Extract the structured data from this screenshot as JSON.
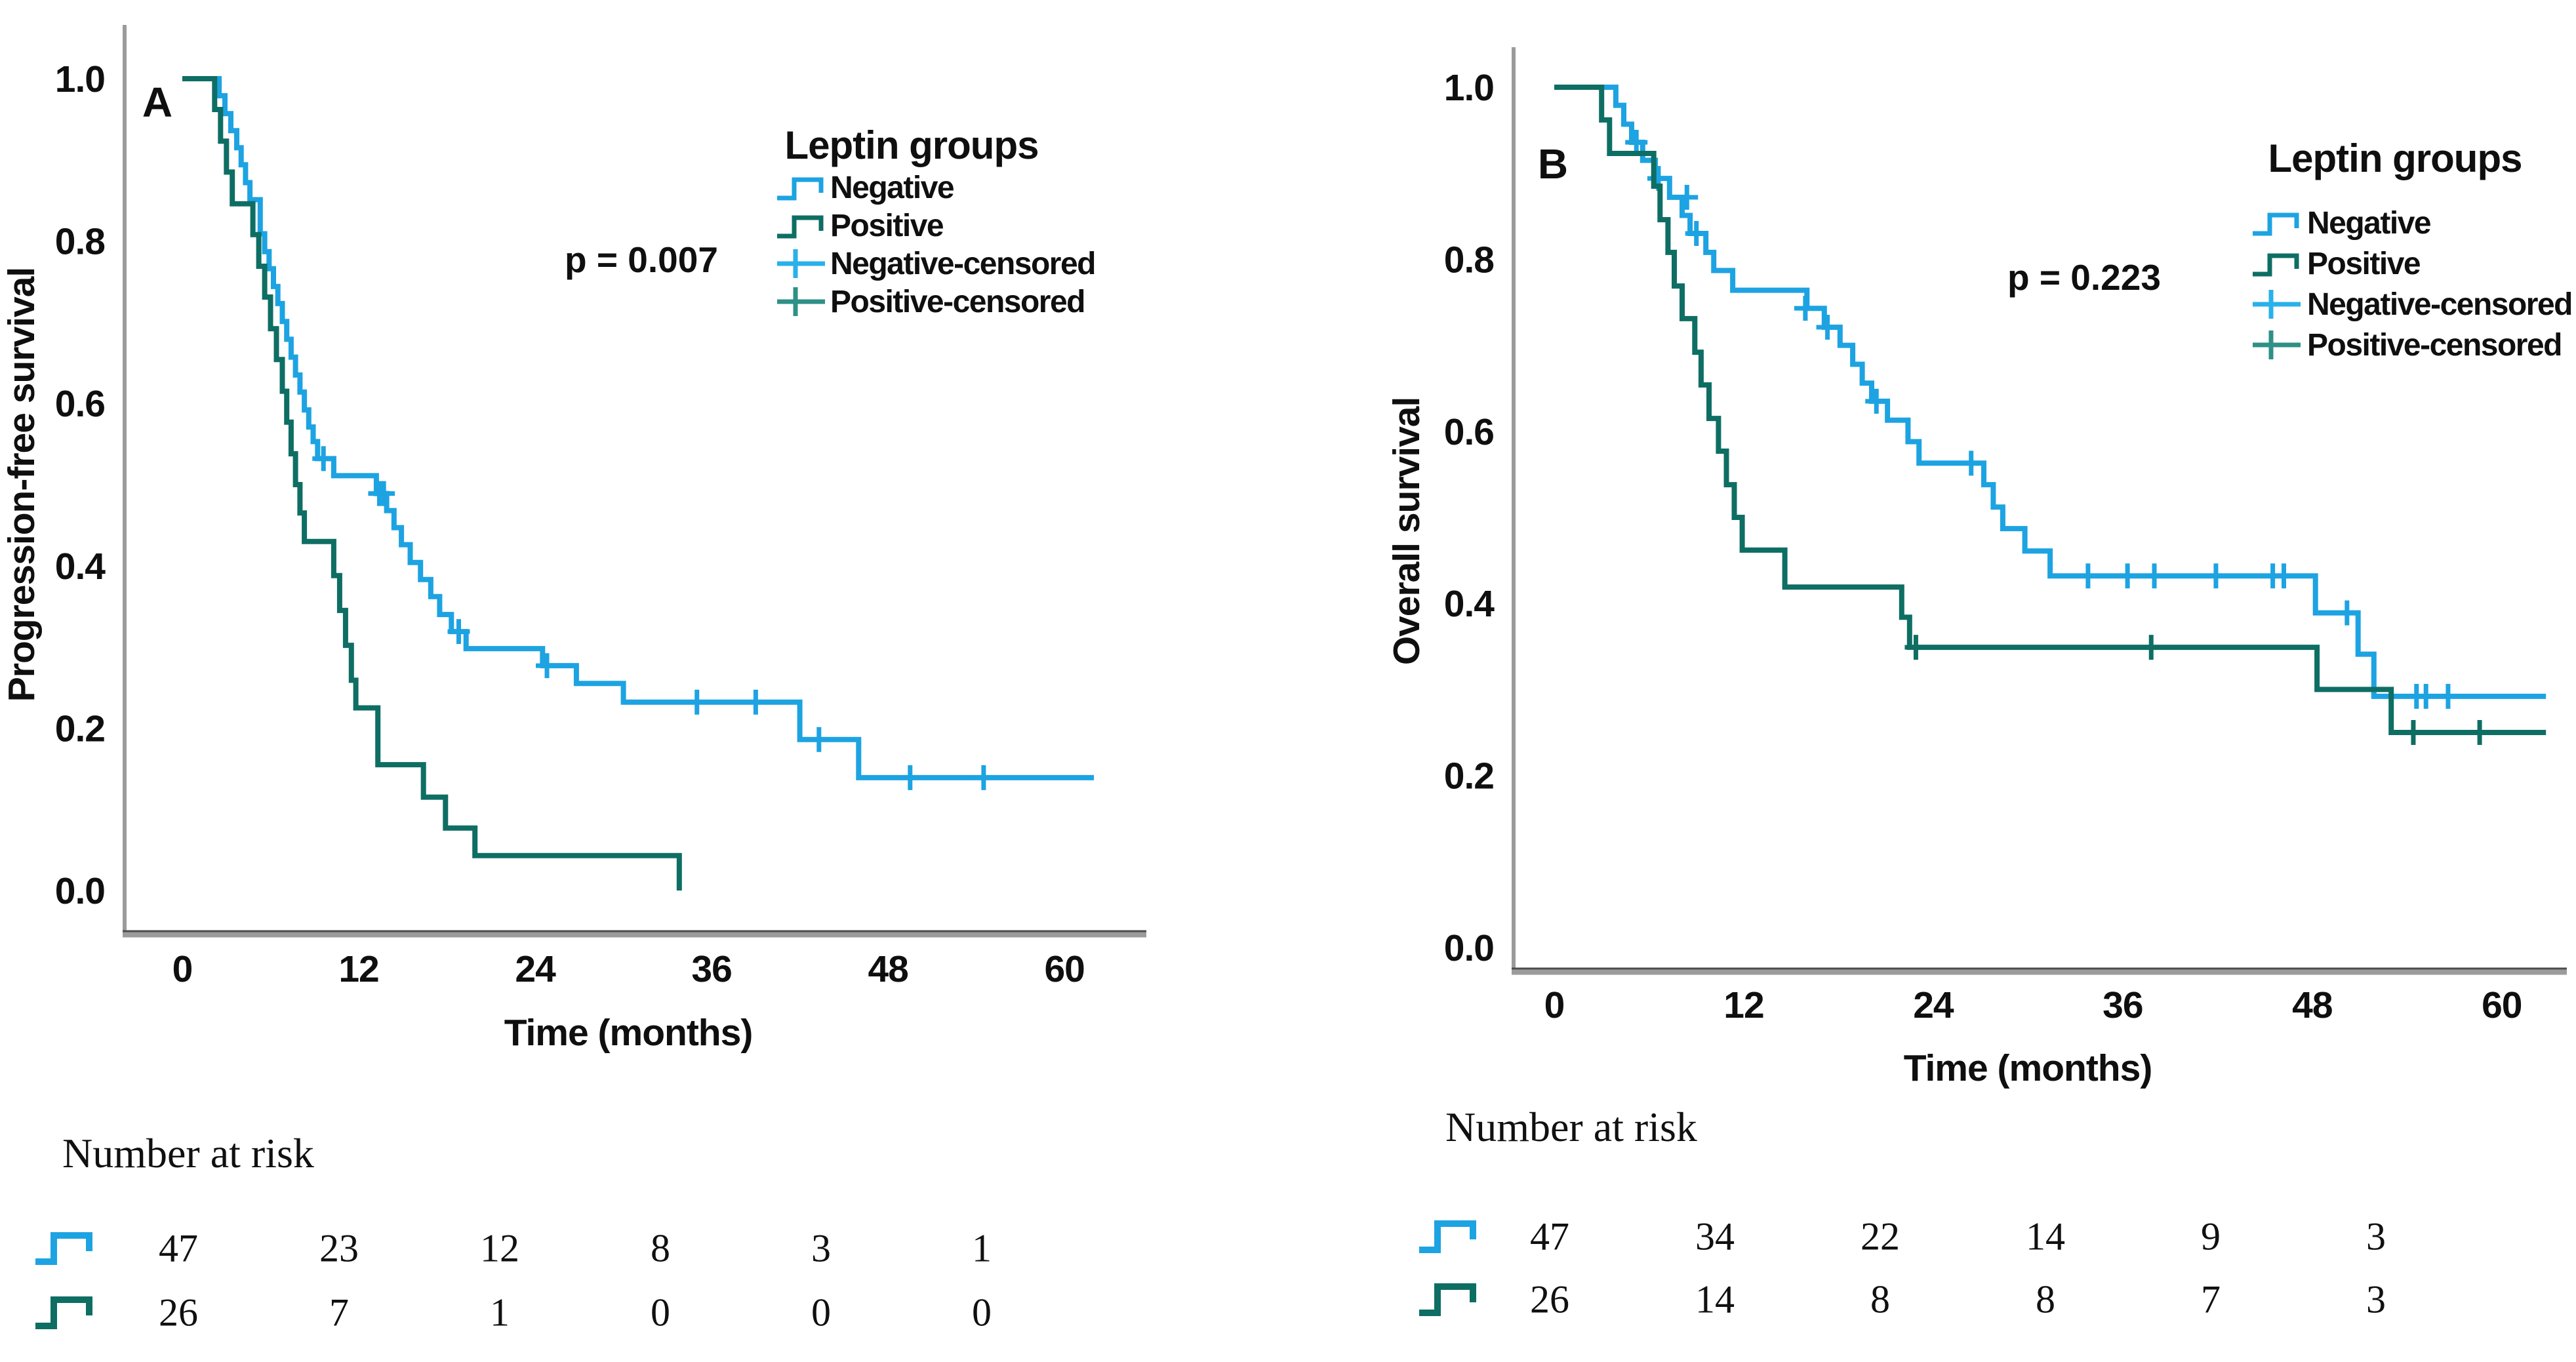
{
  "figure_name": "Kaplan-Meier survival by leptin group",
  "chart_data": [
    {
      "type": "line",
      "subtype": "kaplan-meier-step",
      "panel_letter": "A",
      "xlabel": "Time (months)",
      "ylabel": "Progression-free survival",
      "xlim": [
        0,
        63
      ],
      "ylim": [
        0,
        1
      ],
      "x_ticks": [
        0,
        12,
        24,
        36,
        48,
        60
      ],
      "y_tick_labels": [
        "1.0",
        "0.8",
        "0.6",
        "0.4",
        "0.2",
        "0.0"
      ],
      "grid": "off",
      "legend_position": "upper-right-inside",
      "p_value": "p = 0.007",
      "legend_title": "Leptin groups",
      "legend": [
        {
          "label": "Negative",
          "glyph": "step",
          "color": "#1da3e2"
        },
        {
          "label": "Positive",
          "glyph": "step",
          "color": "#0e6e63"
        },
        {
          "label": "Negative-censored",
          "glyph": "plus",
          "color": "#29b1ea"
        },
        {
          "label": "Positive-censored",
          "glyph": "plus",
          "color": "#2e9087"
        }
      ],
      "series": [
        {
          "name": "Negative",
          "color": "#1da3e2",
          "end": 62,
          "steps": [
            [
              2.5,
              0.979
            ],
            [
              2.9,
              0.957
            ],
            [
              3.3,
              0.936
            ],
            [
              3.7,
              0.915
            ],
            [
              4.0,
              0.894
            ],
            [
              4.3,
              0.872
            ],
            [
              4.6,
              0.851
            ],
            [
              5.3,
              0.809
            ],
            [
              5.6,
              0.787
            ],
            [
              5.9,
              0.766
            ],
            [
              6.2,
              0.744
            ],
            [
              6.5,
              0.723
            ],
            [
              6.8,
              0.701
            ],
            [
              7.1,
              0.679
            ],
            [
              7.4,
              0.657
            ],
            [
              7.7,
              0.635
            ],
            [
              8.0,
              0.614
            ],
            [
              8.3,
              0.592
            ],
            [
              8.6,
              0.571
            ],
            [
              8.9,
              0.553
            ],
            [
              9.2,
              0.532
            ],
            [
              10.3,
              0.511
            ],
            [
              13.2,
              0.489
            ],
            [
              13.9,
              0.468
            ],
            [
              14.4,
              0.447
            ],
            [
              14.9,
              0.426
            ],
            [
              15.5,
              0.404
            ],
            [
              16.2,
              0.383
            ],
            [
              16.9,
              0.362
            ],
            [
              17.5,
              0.34
            ],
            [
              18.3,
              0.319
            ],
            [
              19.3,
              0.298
            ],
            [
              24.5,
              0.277
            ],
            [
              26.8,
              0.255
            ],
            [
              30.0,
              0.232
            ],
            [
              42.0,
              0.186
            ],
            [
              46.0,
              0.139
            ]
          ],
          "censors": [
            [
              9.6,
              0.532
            ],
            [
              13.4,
              0.489
            ],
            [
              13.7,
              0.489
            ],
            [
              18.8,
              0.319
            ],
            [
              24.8,
              0.277
            ],
            [
              35.0,
              0.232
            ],
            [
              39.0,
              0.232
            ],
            [
              43.3,
              0.186
            ],
            [
              49.5,
              0.139
            ],
            [
              54.5,
              0.139
            ]
          ]
        },
        {
          "name": "Positive",
          "color": "#0e6e63",
          "end": 33.8,
          "steps": [
            [
              2.2,
              0.962
            ],
            [
              2.6,
              0.923
            ],
            [
              3.0,
              0.885
            ],
            [
              3.4,
              0.846
            ],
            [
              4.8,
              0.808
            ],
            [
              5.2,
              0.769
            ],
            [
              5.6,
              0.731
            ],
            [
              6.0,
              0.692
            ],
            [
              6.4,
              0.654
            ],
            [
              6.8,
              0.615
            ],
            [
              7.1,
              0.577
            ],
            [
              7.4,
              0.538
            ],
            [
              7.7,
              0.5
            ],
            [
              8.0,
              0.465
            ],
            [
              8.3,
              0.43
            ],
            [
              10.3,
              0.388
            ],
            [
              10.7,
              0.345
            ],
            [
              11.1,
              0.302
            ],
            [
              11.5,
              0.259
            ],
            [
              11.8,
              0.225
            ],
            [
              13.3,
              0.155
            ],
            [
              16.4,
              0.115
            ],
            [
              17.9,
              0.077
            ],
            [
              19.9,
              0.043
            ],
            [
              33.8,
              0.0
            ]
          ],
          "censors": []
        }
      ],
      "number_at_risk": {
        "title": "Number at risk",
        "time_points": [
          0,
          12,
          24,
          36,
          48,
          60
        ],
        "rows": [
          {
            "group": "Negative",
            "color": "#1da3e2",
            "values": [
              "47",
              "23",
              "12",
              "8",
              "3",
              "1"
            ]
          },
          {
            "group": "Positive",
            "color": "#0e6e63",
            "values": [
              "26",
              "7",
              "1",
              "0",
              "0",
              "0"
            ]
          }
        ]
      }
    },
    {
      "type": "line",
      "subtype": "kaplan-meier-step",
      "panel_letter": "B",
      "xlabel": "Time (months)",
      "ylabel": "Overall survival",
      "xlim": [
        0,
        63
      ],
      "ylim": [
        0,
        1
      ],
      "x_ticks": [
        0,
        12,
        24,
        36,
        48,
        60
      ],
      "y_tick_labels": [
        "1.0",
        "0.8",
        "0.6",
        "0.4",
        "0.2",
        "0.0"
      ],
      "grid": "off",
      "legend_position": "upper-right-inside",
      "p_value": "p = 0.223",
      "legend_title": "Leptin groups",
      "legend": [
        {
          "label": "Negative",
          "glyph": "step",
          "color": "#1da3e2"
        },
        {
          "label": "Positive",
          "glyph": "step",
          "color": "#0e6e63"
        },
        {
          "label": "Negative-censored",
          "glyph": "plus",
          "color": "#29b1ea"
        },
        {
          "label": "Positive-censored",
          "glyph": "plus",
          "color": "#2e9087"
        }
      ],
      "series": [
        {
          "name": "Negative",
          "color": "#1da3e2",
          "end": 62.8,
          "steps": [
            [
              3.9,
              0.979
            ],
            [
              4.4,
              0.957
            ],
            [
              4.9,
              0.936
            ],
            [
              5.6,
              0.915
            ],
            [
              6.4,
              0.894
            ],
            [
              7.3,
              0.872
            ],
            [
              8.1,
              0.851
            ],
            [
              8.6,
              0.83
            ],
            [
              9.6,
              0.808
            ],
            [
              10.1,
              0.787
            ],
            [
              11.3,
              0.764
            ],
            [
              16.0,
              0.743
            ],
            [
              17.1,
              0.721
            ],
            [
              18.1,
              0.7
            ],
            [
              18.9,
              0.678
            ],
            [
              19.5,
              0.656
            ],
            [
              20.1,
              0.635
            ],
            [
              21.1,
              0.613
            ],
            [
              22.4,
              0.588
            ],
            [
              23.1,
              0.563
            ],
            [
              27.2,
              0.538
            ],
            [
              27.8,
              0.512
            ],
            [
              28.4,
              0.487
            ],
            [
              29.8,
              0.461
            ],
            [
              31.4,
              0.432
            ],
            [
              48.2,
              0.389
            ],
            [
              50.9,
              0.341
            ],
            [
              51.9,
              0.292
            ]
          ],
          "censors": [
            [
              5.2,
              0.936
            ],
            [
              6.6,
              0.894
            ],
            [
              8.4,
              0.872
            ],
            [
              9.0,
              0.83
            ],
            [
              15.9,
              0.743
            ],
            [
              17.3,
              0.721
            ],
            [
              20.4,
              0.635
            ],
            [
              26.4,
              0.563
            ],
            [
              33.8,
              0.432
            ],
            [
              36.3,
              0.432
            ],
            [
              38.0,
              0.432
            ],
            [
              41.9,
              0.432
            ],
            [
              45.5,
              0.432
            ],
            [
              46.2,
              0.432
            ],
            [
              50.2,
              0.389
            ],
            [
              54.6,
              0.292
            ],
            [
              55.2,
              0.292
            ],
            [
              56.6,
              0.292
            ]
          ]
        },
        {
          "name": "Positive",
          "color": "#0e6e63",
          "end": 62.8,
          "steps": [
            [
              3.0,
              0.962
            ],
            [
              3.5,
              0.923
            ],
            [
              6.3,
              0.885
            ],
            [
              6.7,
              0.846
            ],
            [
              7.2,
              0.808
            ],
            [
              7.6,
              0.769
            ],
            [
              8.1,
              0.731
            ],
            [
              8.9,
              0.692
            ],
            [
              9.3,
              0.654
            ],
            [
              9.8,
              0.615
            ],
            [
              10.4,
              0.577
            ],
            [
              10.9,
              0.538
            ],
            [
              11.4,
              0.5
            ],
            [
              11.9,
              0.462
            ],
            [
              14.6,
              0.419
            ],
            [
              22.0,
              0.384
            ],
            [
              22.5,
              0.349
            ],
            [
              48.3,
              0.3
            ],
            [
              53.0,
              0.25
            ]
          ],
          "censors": [
            [
              22.9,
              0.349
            ],
            [
              37.8,
              0.349
            ],
            [
              54.4,
              0.25
            ],
            [
              58.6,
              0.25
            ]
          ]
        }
      ],
      "number_at_risk": {
        "title": "Number at risk",
        "time_points": [
          0,
          12,
          24,
          36,
          48,
          60
        ],
        "rows": [
          {
            "group": "Negative",
            "color": "#1da3e2",
            "values": [
              "47",
              "34",
              "22",
              "14",
              "9",
              "3"
            ]
          },
          {
            "group": "Positive",
            "color": "#0e6e63",
            "values": [
              "26",
              "14",
              "8",
              "8",
              "7",
              "3"
            ]
          }
        ]
      }
    }
  ],
  "colors": {
    "negative_line": "#1da3e2",
    "positive_line": "#0e6e63",
    "negative_censored": "#29b1ea",
    "positive_censored": "#2e9087",
    "axis_line": "#9b9b9b",
    "axis_edge": "#4d4d4d",
    "text": "#101010"
  }
}
